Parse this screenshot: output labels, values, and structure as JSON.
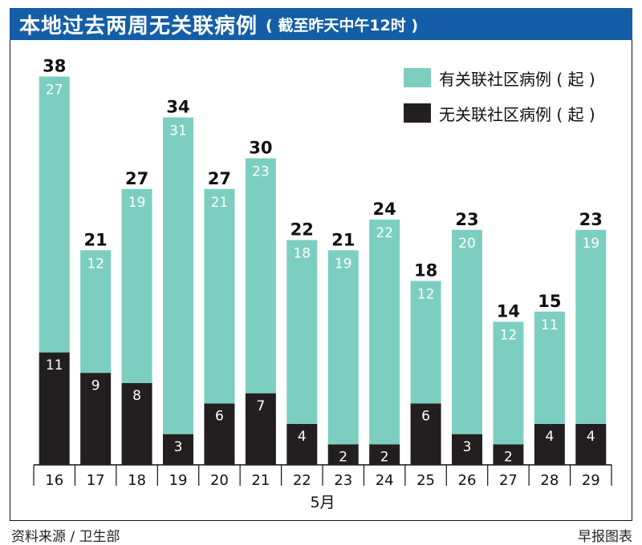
{
  "header": {
    "title": "本地过去两周无关联病例",
    "subtitle": "( 截至昨天中午12时 )"
  },
  "footer": {
    "source": "资料来源 / 卫生部",
    "credit": "早报图表"
  },
  "colors": {
    "title_bg": "#135ea6",
    "linked": "#7ccfc0",
    "unlinked": "#231f20"
  },
  "chart_data": {
    "type": "bar",
    "stacked": true,
    "title": "本地过去两周无关联病例",
    "xlabel": "5月",
    "ylabel": "",
    "categories": [
      "16",
      "17",
      "18",
      "19",
      "20",
      "21",
      "22",
      "23",
      "24",
      "25",
      "26",
      "27",
      "28",
      "29"
    ],
    "series": [
      {
        "name": "无关联社区病例(起)",
        "values": [
          11,
          9,
          8,
          3,
          6,
          7,
          4,
          2,
          2,
          6,
          3,
          2,
          4,
          4
        ]
      },
      {
        "name": "有关联社区病例(起)",
        "values": [
          27,
          12,
          19,
          31,
          21,
          23,
          18,
          19,
          22,
          12,
          20,
          12,
          11,
          19
        ]
      }
    ],
    "totals": [
      38,
      21,
      27,
      34,
      27,
      30,
      22,
      21,
      24,
      18,
      23,
      14,
      15,
      23
    ],
    "ylim": [
      0,
      42
    ],
    "legend": [
      {
        "label": "有关联社区病例 ( 起 )",
        "color": "#7ccfc0"
      },
      {
        "label": "无关联社区病例 ( 起 )",
        "color": "#231f20"
      }
    ],
    "legend_position": "top-right"
  }
}
